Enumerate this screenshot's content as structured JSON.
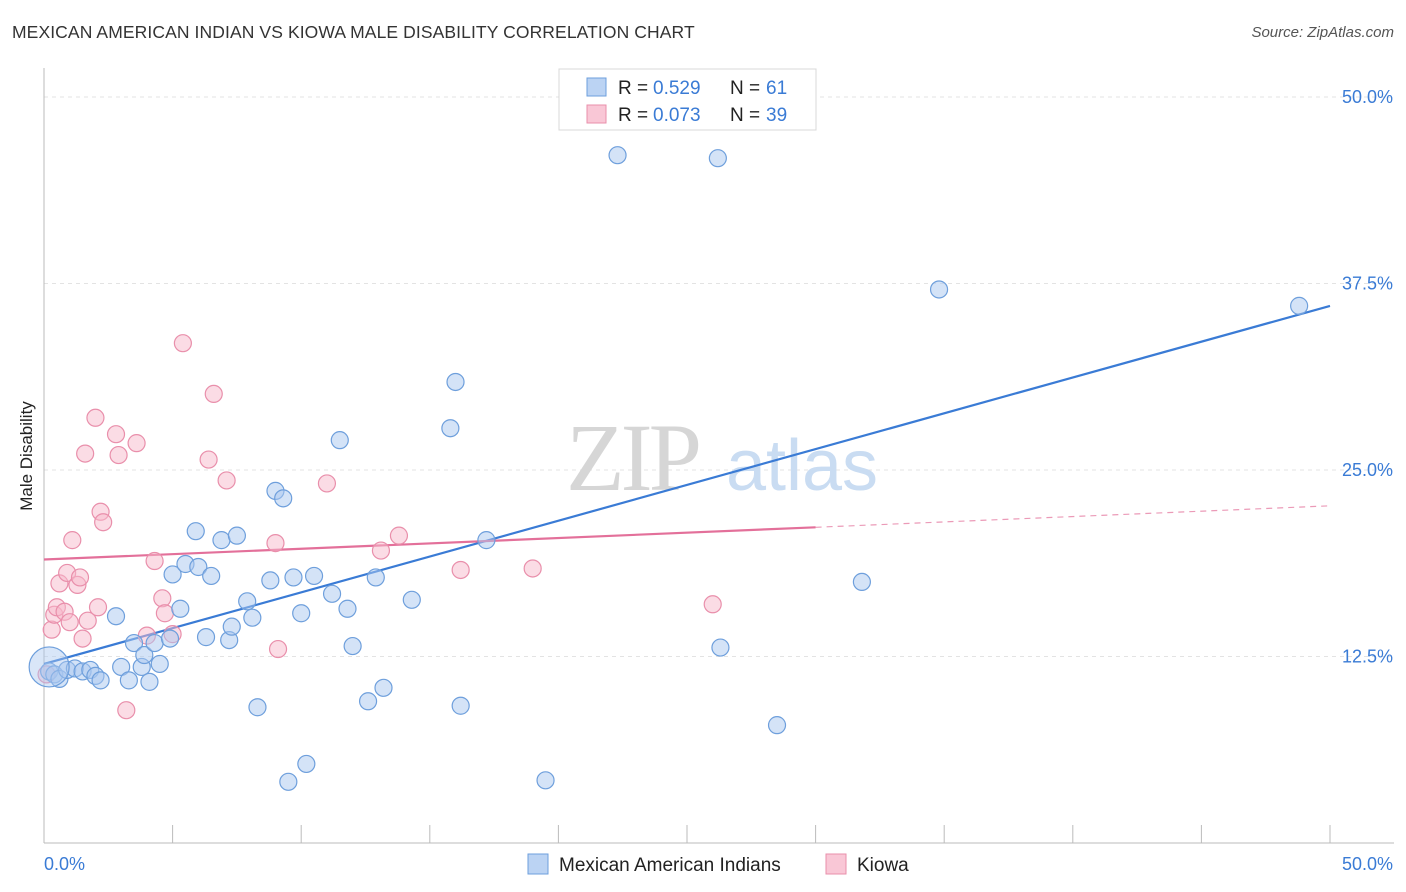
{
  "title": "MEXICAN AMERICAN INDIAN VS KIOWA MALE DISABILITY CORRELATION CHART",
  "source": "Source: ZipAtlas.com",
  "watermark": {
    "zip": "ZIP",
    "atlas": "atlas"
  },
  "chart_data": {
    "type": "scatter",
    "ylabel": "Male Disability",
    "xlim": [
      0,
      50
    ],
    "ylim": [
      0,
      50
    ],
    "x_tick_labels": [
      {
        "value": 0,
        "label": "0.0%"
      },
      {
        "value": 50,
        "label": "50.0%"
      }
    ],
    "y_tick_labels": [
      {
        "value": 12.5,
        "label": "12.5%"
      },
      {
        "value": 25,
        "label": "25.0%"
      },
      {
        "value": 37.5,
        "label": "37.5%"
      },
      {
        "value": 50,
        "label": "50.0%"
      }
    ],
    "grid": "horizontal dashed",
    "legend_position": "top-center",
    "colors": {
      "blue_fill": "#aac8f0",
      "blue_stroke": "#6e9fdc",
      "blue_line": "#3a7bd5",
      "pink_fill": "#f7b9cc",
      "pink_stroke": "#e98fab",
      "pink_line": "#e3709a",
      "stat_value": "#3a7bd5"
    },
    "series": [
      {
        "name": "Mexican American Indians",
        "color": "blue",
        "stats": {
          "r_label": "R =",
          "r": "0.529",
          "n_label": "N =",
          "n": "61"
        },
        "trend": {
          "x": [
            0,
            50
          ],
          "y": [
            12.0,
            36.0
          ],
          "dashed_from": null
        },
        "points": [
          [
            0.2,
            11.5
          ],
          [
            0.4,
            11.3
          ],
          [
            0.6,
            11.0
          ],
          [
            0.9,
            11.6
          ],
          [
            1.2,
            11.7
          ],
          [
            1.5,
            11.5
          ],
          [
            1.8,
            11.6
          ],
          [
            2.0,
            11.2
          ],
          [
            2.2,
            10.9
          ],
          [
            2.8,
            15.2
          ],
          [
            3.0,
            11.8
          ],
          [
            3.3,
            10.9
          ],
          [
            3.5,
            13.4
          ],
          [
            3.8,
            11.8
          ],
          [
            3.9,
            12.6
          ],
          [
            4.1,
            10.8
          ],
          [
            4.3,
            13.4
          ],
          [
            4.5,
            12.0
          ],
          [
            4.9,
            13.7
          ],
          [
            5.0,
            18.0
          ],
          [
            5.3,
            15.7
          ],
          [
            5.5,
            18.7
          ],
          [
            5.9,
            20.9
          ],
          [
            6.0,
            18.5
          ],
          [
            6.3,
            13.8
          ],
          [
            6.5,
            17.9
          ],
          [
            6.9,
            20.3
          ],
          [
            7.2,
            13.6
          ],
          [
            7.3,
            14.5
          ],
          [
            7.5,
            20.6
          ],
          [
            7.9,
            16.2
          ],
          [
            8.1,
            15.1
          ],
          [
            8.3,
            9.1
          ],
          [
            8.8,
            17.6
          ],
          [
            9.0,
            23.6
          ],
          [
            9.3,
            23.1
          ],
          [
            9.5,
            4.1
          ],
          [
            9.7,
            17.8
          ],
          [
            10.0,
            15.4
          ],
          [
            10.2,
            5.3
          ],
          [
            10.5,
            17.9
          ],
          [
            11.2,
            16.7
          ],
          [
            11.5,
            27.0
          ],
          [
            11.8,
            15.7
          ],
          [
            12.0,
            13.2
          ],
          [
            12.6,
            9.5
          ],
          [
            12.9,
            17.8
          ],
          [
            13.2,
            10.4
          ],
          [
            14.3,
            16.3
          ],
          [
            15.8,
            27.8
          ],
          [
            16.0,
            30.9
          ],
          [
            16.2,
            9.2
          ],
          [
            17.2,
            20.3
          ],
          [
            19.5,
            4.2
          ],
          [
            22.3,
            46.1
          ],
          [
            26.2,
            45.9
          ],
          [
            26.3,
            13.1
          ],
          [
            28.5,
            7.9
          ],
          [
            31.8,
            17.5
          ],
          [
            34.8,
            37.1
          ],
          [
            48.8,
            36.0
          ]
        ]
      },
      {
        "name": "Kiowa",
        "color": "pink",
        "stats": {
          "r_label": "R =",
          "r": "0.073",
          "n_label": "N =",
          "n": "39"
        },
        "trend": {
          "x": [
            0,
            50
          ],
          "y": [
            19.0,
            22.6
          ],
          "dashed_from": 30
        },
        "points": [
          [
            0.1,
            11.3
          ],
          [
            0.3,
            14.3
          ],
          [
            0.4,
            15.3
          ],
          [
            0.5,
            15.8
          ],
          [
            0.6,
            17.4
          ],
          [
            0.8,
            15.5
          ],
          [
            0.9,
            18.1
          ],
          [
            1.0,
            14.8
          ],
          [
            1.1,
            20.3
          ],
          [
            1.3,
            17.3
          ],
          [
            1.4,
            17.8
          ],
          [
            1.5,
            13.7
          ],
          [
            1.6,
            26.1
          ],
          [
            1.7,
            14.9
          ],
          [
            2.0,
            28.5
          ],
          [
            2.1,
            15.8
          ],
          [
            2.2,
            22.2
          ],
          [
            2.3,
            21.5
          ],
          [
            2.8,
            27.4
          ],
          [
            2.9,
            26.0
          ],
          [
            3.2,
            8.9
          ],
          [
            3.6,
            26.8
          ],
          [
            4.0,
            13.9
          ],
          [
            4.3,
            18.9
          ],
          [
            4.6,
            16.4
          ],
          [
            4.7,
            15.4
          ],
          [
            5.0,
            14.0
          ],
          [
            5.4,
            33.5
          ],
          [
            6.4,
            25.7
          ],
          [
            6.6,
            30.1
          ],
          [
            7.1,
            24.3
          ],
          [
            9.0,
            20.1
          ],
          [
            9.1,
            13.0
          ],
          [
            11.0,
            24.1
          ],
          [
            13.1,
            19.6
          ],
          [
            13.8,
            20.6
          ],
          [
            16.2,
            18.3
          ],
          [
            19.0,
            18.4
          ],
          [
            26.0,
            16.0
          ]
        ]
      }
    ]
  }
}
